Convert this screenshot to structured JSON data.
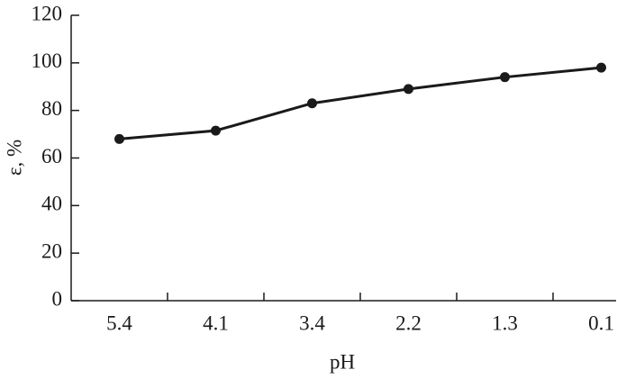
{
  "chart_data": {
    "type": "line",
    "x_label": "pH",
    "y_label": "ε, %",
    "categories": [
      "5.4",
      "4.1",
      "3.4",
      "2.2",
      "1.3",
      "0.1"
    ],
    "values": [
      68,
      71.5,
      83,
      89,
      94,
      98
    ],
    "color": "#1a1a1a",
    "ylim": [
      0,
      120
    ],
    "yticks": [
      0,
      20,
      40,
      60,
      80,
      100,
      120
    ],
    "grid": false
  }
}
